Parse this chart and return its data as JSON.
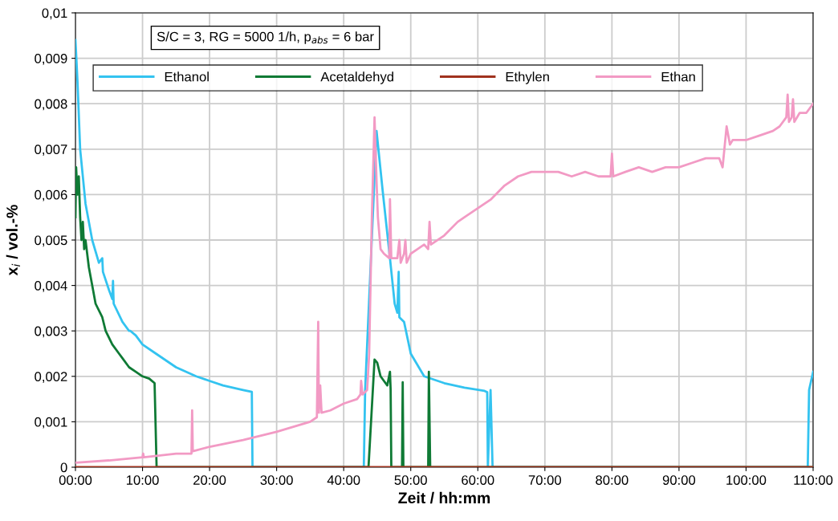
{
  "chart_data": {
    "type": "line",
    "xlabel": "Zeit / hh:mm",
    "ylabel": "x$_{i}$ / vol.-%",
    "annotations": [
      "S/C = 3, RG = 5000 1/h, p$_{abs}$ = 6 bar"
    ],
    "xlim": [
      0,
      110
    ],
    "ylim": [
      0,
      0.01
    ],
    "xticks": [
      {
        "value": 0,
        "label": "00:00"
      },
      {
        "value": 10,
        "label": "10:00"
      },
      {
        "value": 20,
        "label": "20:00"
      },
      {
        "value": 30,
        "label": "30:00"
      },
      {
        "value": 40,
        "label": "40:00"
      },
      {
        "value": 50,
        "label": "50:00"
      },
      {
        "value": 60,
        "label": "60:00"
      },
      {
        "value": 70,
        "label": "70:00"
      },
      {
        "value": 80,
        "label": "80:00"
      },
      {
        "value": 90,
        "label": "90:00"
      },
      {
        "value": 100,
        "label": "100:00"
      },
      {
        "value": 110,
        "label": "110:00"
      }
    ],
    "yticks": [
      0,
      {
        "value": 0.001,
        "label": "0,001"
      },
      {
        "value": 0.002,
        "label": "0,002"
      },
      {
        "value": 0.003,
        "label": "0,003"
      },
      {
        "value": 0.004,
        "label": "0,004"
      },
      {
        "value": 0.005,
        "label": "0,005"
      },
      {
        "value": 0.006,
        "label": "0,006"
      },
      {
        "value": 0.007,
        "label": "0,007"
      },
      {
        "value": 0.008,
        "label": "0,008"
      },
      {
        "value": 0.009,
        "label": "0,009"
      },
      {
        "value": 0.01,
        "label": "0,01"
      }
    ],
    "grid": true,
    "legend": "top left",
    "marker": "none",
    "line_style": "solid",
    "series": [
      {
        "name": "Ethanol",
        "color": "#33c3f0",
        "x": [
          0,
          0.3,
          0.7,
          1.5,
          2.5,
          3.5,
          4,
          4.1,
          5,
          5.5,
          5.6,
          5.7,
          7,
          8,
          8.2,
          9,
          10,
          12,
          15,
          18,
          20,
          22,
          25,
          26.3,
          26.4,
          43.0,
          43.2,
          44.9,
          45.8,
          46.9,
          47.6,
          48.0,
          48.2,
          48.3,
          49,
          50,
          52,
          55,
          58,
          61,
          61.4,
          61.5,
          61.9,
          62.2,
          109.2,
          109.4,
          110
        ],
        "values": [
          0.0094,
          0.0085,
          0.007,
          0.0058,
          0.005,
          0.0045,
          0.0046,
          0.0043,
          0.0039,
          0.0037,
          0.0041,
          0.0036,
          0.0032,
          0.003,
          0.003,
          0.0029,
          0.0027,
          0.0025,
          0.0022,
          0.002,
          0.0019,
          0.0018,
          0.0017,
          0.00166,
          0,
          0,
          0.0017,
          0.0074,
          0.0061,
          0.0046,
          0.0036,
          0.0034,
          0.0043,
          0.0033,
          0.0032,
          0.0025,
          0.002,
          0.00185,
          0.00175,
          0.00168,
          0.00165,
          0,
          0.0017,
          0,
          0,
          0.0017,
          0.0021
        ]
      },
      {
        "name": "Acetaldehyd",
        "color": "#0f7a35",
        "x": [
          0,
          0.1,
          0.3,
          0.5,
          0.7,
          0.9,
          1.1,
          1.3,
          1.5,
          2,
          2.5,
          3,
          4,
          4.5,
          5.5,
          6.5,
          7,
          8,
          9,
          10,
          11,
          11.8,
          12.1,
          43.7,
          44.6,
          45,
          45.5,
          46,
          46.5,
          46.9,
          47.0,
          47.1,
          48.7,
          48.8,
          48.9,
          52.6,
          52.7,
          52.9,
          110
        ],
        "values": [
          0.0055,
          0.0066,
          0.006,
          0.0064,
          0.0055,
          0.005,
          0.0054,
          0.0048,
          0.005,
          0.0044,
          0.004,
          0.0036,
          0.0033,
          0.003,
          0.0027,
          0.0025,
          0.0024,
          0.0022,
          0.0021,
          0.002,
          0.00195,
          0.00185,
          0,
          0,
          0.00237,
          0.0023,
          0.002,
          0.0019,
          0.0018,
          0.0021,
          0.0017,
          0,
          0,
          0.00187,
          0,
          0,
          0.0021,
          0,
          0
        ]
      },
      {
        "name": "Ethylen",
        "color": "#a0321e",
        "x": [
          0,
          110
        ],
        "values": [
          0,
          0
        ]
      },
      {
        "name": "Ethan",
        "color": "#f29ac4",
        "x": [
          0,
          5,
          10,
          10.1,
          10.2,
          15,
          17.3,
          17.4,
          17.5,
          20,
          25,
          30,
          35,
          36,
          36.2,
          36.3,
          36.5,
          36.7,
          38,
          40,
          42,
          42.5,
          42.6,
          42.8,
          43.5,
          43.8,
          44.2,
          44.6,
          44.9,
          45.1,
          45.5,
          46,
          46.8,
          46.9,
          47.1,
          48,
          48.3,
          48.5,
          49,
          49.2,
          49.4,
          50,
          51,
          52,
          52.6,
          52.8,
          53,
          55,
          57,
          58,
          60,
          62,
          64,
          66,
          68,
          70,
          72,
          74,
          76,
          78,
          79.8,
          80,
          80.2,
          82,
          84,
          86,
          88,
          90,
          92,
          94,
          96,
          96.5,
          97.1,
          97.6,
          98,
          100,
          102,
          104,
          105,
          106,
          106.2,
          106.4,
          106.8,
          107,
          107.2,
          108,
          109,
          110
        ],
        "values": [
          0.0001,
          0.00015,
          0.00022,
          0.0003,
          0.00022,
          0.0003,
          0.0003,
          0.00125,
          0.00035,
          0.00045,
          0.0006,
          0.00078,
          0.001,
          0.0011,
          0.0032,
          0.0012,
          0.0018,
          0.0012,
          0.00125,
          0.0014,
          0.0015,
          0.0016,
          0.0019,
          0.0016,
          0.0017,
          0.0025,
          0.0055,
          0.0077,
          0.0063,
          0.0055,
          0.0048,
          0.0047,
          0.0046,
          0.0059,
          0.0046,
          0.0046,
          0.005,
          0.0045,
          0.0047,
          0.005,
          0.0045,
          0.0047,
          0.0048,
          0.0049,
          0.0048,
          0.0054,
          0.0049,
          0.0051,
          0.0054,
          0.0055,
          0.0057,
          0.0059,
          0.0062,
          0.0064,
          0.0065,
          0.0065,
          0.0065,
          0.0064,
          0.0065,
          0.0064,
          0.0064,
          0.0069,
          0.0064,
          0.0065,
          0.0066,
          0.0065,
          0.0066,
          0.0066,
          0.0067,
          0.0068,
          0.0068,
          0.0066,
          0.0075,
          0.0071,
          0.0072,
          0.0072,
          0.0073,
          0.0074,
          0.0075,
          0.0077,
          0.0082,
          0.0076,
          0.0077,
          0.0081,
          0.0076,
          0.0078,
          0.0078,
          0.008
        ]
      }
    ]
  }
}
